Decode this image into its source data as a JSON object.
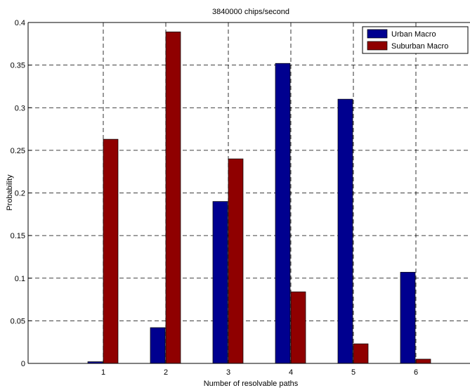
{
  "chart_data": {
    "type": "bar",
    "title": "3840000 chips/second",
    "xlabel": "Number of resolvable paths",
    "ylabel": "Probability",
    "categories": [
      "1",
      "2",
      "3",
      "4",
      "5",
      "6"
    ],
    "ylim": [
      0,
      0.4
    ],
    "yticks": [
      "0",
      "0.05",
      "0.1",
      "0.15",
      "0.2",
      "0.25",
      "0.3",
      "0.35",
      "0.4"
    ],
    "grid": true,
    "legend_position": "top-right",
    "series": [
      {
        "name": "Urban Macro",
        "color": "#00008f",
        "values": [
          0.002,
          0.042,
          0.19,
          0.352,
          0.31,
          0.107
        ]
      },
      {
        "name": "Suburban Macro",
        "color": "#8f0000",
        "values": [
          0.263,
          0.389,
          0.24,
          0.084,
          0.023,
          0.005
        ]
      }
    ]
  }
}
